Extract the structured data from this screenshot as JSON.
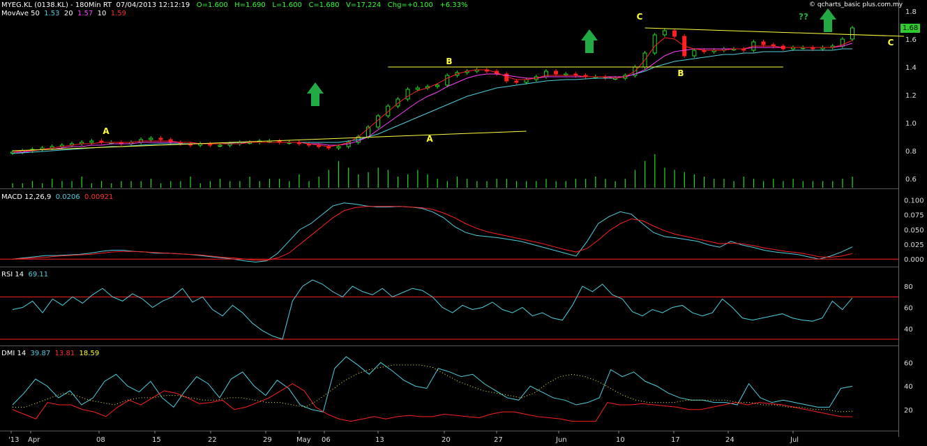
{
  "header": {
    "symbol": "MYEG.KL (0138.KL) - 180Min RT",
    "datetime": "07/04/2013  12:12:19",
    "open": "O=1.600",
    "high": "H=1.690",
    "low": "L=1.600",
    "close": "C=1.680",
    "volume": "V=17,224",
    "change": "Chg=+0.100",
    "change_pct": "+6.33%",
    "watermark": "© qcharts_basic plus.com.my",
    "price_badge": "1.68"
  },
  "movave": {
    "label": "MovAve 50",
    "v50": "1.53",
    "p20": "20",
    "v20": "1.57",
    "p10": "10",
    "v10": "1.59"
  },
  "macd": {
    "label": "MACD 12,26,9",
    "v1": "0.0206",
    "v2": "0.00921"
  },
  "rsi": {
    "label": "RSI 14",
    "v": "69.11"
  },
  "dmi": {
    "label": "DMI 14",
    "v1": "39.87",
    "v2": "13.81",
    "v3": "18.59"
  },
  "annotations": {
    "a": "A",
    "b": "B",
    "c": "C",
    "q": "??"
  },
  "colors": {
    "up": "#22dd22",
    "down": "#ff2020",
    "ma50": "#4fd0e0",
    "ma20": "#ff40ff",
    "ma10": "#ff2020",
    "trend": "#ffff40",
    "arrow": "#22aa44"
  },
  "chart_data": [
    {
      "type": "candlestick",
      "title": "MYEG.KL (0138.KL) - 180Min RT",
      "x_labels": [
        "'13",
        "Apr",
        "08",
        "15",
        "22",
        "29",
        "May",
        "06",
        "13",
        "20",
        "27",
        "Jun",
        "10",
        "17",
        "24",
        "Jul"
      ],
      "y_ticks": [
        0.6,
        0.8,
        1.0,
        1.2,
        1.4,
        1.6,
        1.8
      ],
      "ylim": [
        0.55,
        1.82
      ],
      "close": [
        0.79,
        0.8,
        0.81,
        0.82,
        0.83,
        0.84,
        0.85,
        0.86,
        0.87,
        0.86,
        0.86,
        0.85,
        0.86,
        0.88,
        0.89,
        0.88,
        0.86,
        0.85,
        0.84,
        0.85,
        0.84,
        0.84,
        0.85,
        0.86,
        0.86,
        0.87,
        0.87,
        0.86,
        0.86,
        0.85,
        0.84,
        0.83,
        0.82,
        0.83,
        0.86,
        0.9,
        0.97,
        1.05,
        1.12,
        1.17,
        1.24,
        1.25,
        1.26,
        1.27,
        1.34,
        1.36,
        1.37,
        1.38,
        1.37,
        1.35,
        1.3,
        1.29,
        1.31,
        1.33,
        1.37,
        1.35,
        1.35,
        1.34,
        1.33,
        1.33,
        1.32,
        1.32,
        1.34,
        1.4,
        1.5,
        1.63,
        1.66,
        1.62,
        1.48,
        1.52,
        1.51,
        1.52,
        1.53,
        1.53,
        1.52,
        1.58,
        1.56,
        1.55,
        1.53,
        1.54,
        1.54,
        1.53,
        1.54,
        1.55,
        1.6,
        1.68
      ],
      "volume": [
        2,
        2,
        3,
        2,
        4,
        3,
        3,
        5,
        2,
        3,
        2,
        3,
        3,
        3,
        4,
        2,
        3,
        3,
        5,
        2,
        3,
        4,
        3,
        3,
        5,
        3,
        4,
        4,
        3,
        6,
        3,
        5,
        8,
        12,
        9,
        6,
        7,
        9,
        8,
        5,
        6,
        8,
        6,
        4,
        3,
        5,
        4,
        3,
        3,
        4,
        4,
        3,
        3,
        3,
        4,
        3,
        3,
        4,
        4,
        5,
        4,
        3,
        4,
        8,
        12,
        15,
        9,
        8,
        7,
        6,
        5,
        4,
        4,
        3,
        5,
        4,
        3,
        4,
        3,
        4,
        3,
        3,
        3,
        3,
        4,
        5
      ],
      "ma50": [
        0.78,
        0.785,
        0.79,
        0.795,
        0.8,
        0.805,
        0.81,
        0.815,
        0.82,
        0.825,
        0.83,
        0.83,
        0.835,
        0.84,
        0.845,
        0.85,
        0.85,
        0.85,
        0.85,
        0.85,
        0.85,
        0.85,
        0.855,
        0.86,
        0.86,
        0.86,
        0.86,
        0.86,
        0.86,
        0.86,
        0.86,
        0.86,
        0.86,
        0.86,
        0.87,
        0.88,
        0.9,
        0.92,
        0.95,
        0.98,
        1.01,
        1.04,
        1.07,
        1.1,
        1.13,
        1.16,
        1.19,
        1.21,
        1.23,
        1.25,
        1.26,
        1.27,
        1.28,
        1.29,
        1.3,
        1.305,
        1.31,
        1.31,
        1.315,
        1.32,
        1.32,
        1.32,
        1.33,
        1.35,
        1.37,
        1.4,
        1.42,
        1.44,
        1.45,
        1.46,
        1.47,
        1.48,
        1.49,
        1.49,
        1.5,
        1.5,
        1.51,
        1.51,
        1.51,
        1.52,
        1.52,
        1.52,
        1.52,
        1.52,
        1.53,
        1.53
      ],
      "ma20": [
        0.79,
        0.79,
        0.8,
        0.81,
        0.81,
        0.82,
        0.83,
        0.83,
        0.84,
        0.84,
        0.85,
        0.85,
        0.85,
        0.86,
        0.86,
        0.86,
        0.86,
        0.86,
        0.86,
        0.85,
        0.85,
        0.85,
        0.85,
        0.85,
        0.86,
        0.86,
        0.86,
        0.86,
        0.86,
        0.86,
        0.85,
        0.85,
        0.84,
        0.84,
        0.85,
        0.87,
        0.9,
        0.95,
        1.0,
        1.05,
        1.1,
        1.15,
        1.19,
        1.22,
        1.26,
        1.29,
        1.32,
        1.34,
        1.35,
        1.35,
        1.34,
        1.33,
        1.32,
        1.32,
        1.33,
        1.33,
        1.33,
        1.33,
        1.33,
        1.33,
        1.33,
        1.33,
        1.33,
        1.35,
        1.38,
        1.43,
        1.48,
        1.51,
        1.52,
        1.53,
        1.53,
        1.53,
        1.53,
        1.53,
        1.53,
        1.54,
        1.54,
        1.54,
        1.54,
        1.54,
        1.54,
        1.54,
        1.54,
        1.54,
        1.55,
        1.57
      ],
      "ma10": [
        0.79,
        0.8,
        0.8,
        0.81,
        0.82,
        0.83,
        0.84,
        0.85,
        0.85,
        0.86,
        0.86,
        0.86,
        0.86,
        0.87,
        0.87,
        0.87,
        0.87,
        0.86,
        0.86,
        0.85,
        0.85,
        0.85,
        0.85,
        0.85,
        0.86,
        0.86,
        0.86,
        0.86,
        0.86,
        0.86,
        0.85,
        0.84,
        0.83,
        0.84,
        0.86,
        0.9,
        0.96,
        1.02,
        1.08,
        1.14,
        1.19,
        1.23,
        1.25,
        1.28,
        1.32,
        1.35,
        1.37,
        1.38,
        1.38,
        1.36,
        1.33,
        1.31,
        1.31,
        1.32,
        1.34,
        1.34,
        1.34,
        1.34,
        1.33,
        1.33,
        1.33,
        1.32,
        1.33,
        1.37,
        1.45,
        1.55,
        1.61,
        1.6,
        1.55,
        1.53,
        1.52,
        1.52,
        1.52,
        1.53,
        1.53,
        1.55,
        1.55,
        1.55,
        1.54,
        1.54,
        1.54,
        1.54,
        1.54,
        1.54,
        1.56,
        1.59
      ],
      "trendlines": [
        {
          "label": "A",
          "from": [
            0,
            0.8
          ],
          "to": [
            52,
            0.94
          ]
        },
        {
          "label": "B",
          "from": [
            38,
            1.4
          ],
          "to": [
            78,
            1.4
          ]
        },
        {
          "label": "C",
          "from": [
            64,
            1.68
          ],
          "to": [
            86,
            1.62
          ]
        }
      ]
    },
    {
      "type": "line",
      "title": "MACD 12,26,9",
      "y_ticks": [
        0.0,
        0.025,
        0.05,
        0.075,
        0.1
      ],
      "ylim": [
        -0.008,
        0.11
      ],
      "series": [
        {
          "name": "MACD",
          "color": "#4fd0e0",
          "values": [
            0,
            0.002,
            0.004,
            0.006,
            0.006,
            0.007,
            0.008,
            0.01,
            0.013,
            0.015,
            0.015,
            0.013,
            0.012,
            0.01,
            0.01,
            0.009,
            0.008,
            0.006,
            0.004,
            0.002,
            0.0,
            -0.003,
            -0.005,
            -0.003,
            0.01,
            0.03,
            0.05,
            0.06,
            0.075,
            0.09,
            0.095,
            0.093,
            0.09,
            0.088,
            0.088,
            0.089,
            0.088,
            0.086,
            0.08,
            0.07,
            0.055,
            0.045,
            0.04,
            0.038,
            0.036,
            0.033,
            0.03,
            0.025,
            0.02,
            0.015,
            0.01,
            0.005,
            0.03,
            0.06,
            0.072,
            0.08,
            0.076,
            0.06,
            0.045,
            0.038,
            0.036,
            0.033,
            0.03,
            0.024,
            0.02,
            0.03,
            0.024,
            0.02,
            0.015,
            0.012,
            0.01,
            0.008,
            0.004,
            0.0,
            0.005,
            0.012,
            0.0206
          ]
        },
        {
          "name": "Signal",
          "color": "#ff2020",
          "values": [
            0,
            0.001,
            0.002,
            0.003,
            0.005,
            0.006,
            0.007,
            0.008,
            0.01,
            0.012,
            0.013,
            0.013,
            0.012,
            0.011,
            0.01,
            0.009,
            0.008,
            0.007,
            0.005,
            0.003,
            0.002,
            0.0,
            -0.002,
            -0.002,
            0.002,
            0.01,
            0.025,
            0.04,
            0.055,
            0.07,
            0.082,
            0.087,
            0.089,
            0.089,
            0.089,
            0.089,
            0.088,
            0.087,
            0.084,
            0.078,
            0.07,
            0.06,
            0.052,
            0.046,
            0.042,
            0.038,
            0.034,
            0.03,
            0.026,
            0.021,
            0.016,
            0.012,
            0.018,
            0.032,
            0.048,
            0.06,
            0.068,
            0.065,
            0.056,
            0.048,
            0.042,
            0.038,
            0.034,
            0.03,
            0.026,
            0.027,
            0.026,
            0.023,
            0.019,
            0.016,
            0.013,
            0.011,
            0.008,
            0.004,
            0.003,
            0.005,
            0.00921
          ]
        }
      ]
    },
    {
      "type": "line",
      "title": "RSI 14",
      "y_ticks": [
        40,
        60,
        80
      ],
      "ylim": [
        26,
        92
      ],
      "reference_lines": [
        30,
        70
      ],
      "series": [
        {
          "name": "RSI",
          "color": "#4fd0e0",
          "values": [
            58,
            60,
            66,
            55,
            68,
            62,
            70,
            64,
            72,
            78,
            70,
            66,
            73,
            68,
            60,
            66,
            70,
            78,
            65,
            70,
            58,
            52,
            62,
            55,
            45,
            38,
            33,
            30,
            66,
            80,
            86,
            82,
            75,
            70,
            80,
            75,
            72,
            78,
            70,
            74,
            78,
            76,
            70,
            60,
            55,
            62,
            58,
            60,
            65,
            58,
            55,
            60,
            52,
            55,
            50,
            48,
            62,
            80,
            75,
            82,
            72,
            68,
            56,
            52,
            58,
            55,
            60,
            62,
            55,
            52,
            55,
            68,
            60,
            50,
            48,
            50,
            52,
            54,
            50,
            48,
            47,
            50,
            66,
            58,
            69
          ]
        }
      ]
    },
    {
      "type": "line",
      "title": "DMI 14",
      "y_ticks": [
        20,
        40,
        60
      ],
      "ylim": [
        5,
        68
      ],
      "series": [
        {
          "name": "+DI",
          "color": "#4fd0e0",
          "values": [
            24,
            34,
            46,
            40,
            30,
            36,
            24,
            30,
            44,
            50,
            40,
            35,
            44,
            30,
            22,
            36,
            48,
            42,
            30,
            46,
            52,
            40,
            32,
            45,
            38,
            24,
            20,
            18,
            55,
            65,
            58,
            50,
            60,
            53,
            45,
            40,
            38,
            55,
            52,
            48,
            50,
            42,
            36,
            30,
            28,
            40,
            35,
            30,
            28,
            24,
            26,
            30,
            54,
            48,
            52,
            44,
            40,
            34,
            30,
            28,
            28,
            26,
            26,
            24,
            42,
            30,
            26,
            28,
            26,
            24,
            22,
            22,
            38,
            39.87
          ]
        },
        {
          "name": "-DI",
          "color": "#ff2020",
          "values": [
            20,
            16,
            12,
            26,
            24,
            24,
            20,
            18,
            14,
            22,
            28,
            24,
            30,
            36,
            34,
            30,
            25,
            26,
            28,
            20,
            22,
            26,
            30,
            36,
            42,
            36,
            22,
            16,
            12,
            10,
            12,
            14,
            12,
            14,
            15,
            14,
            14,
            16,
            15,
            14,
            13,
            16,
            18,
            18,
            16,
            14,
            13,
            12,
            10,
            10,
            10,
            26,
            24,
            24,
            25,
            24,
            23,
            22,
            20,
            20,
            22,
            24,
            26,
            24,
            26,
            25,
            24,
            22,
            20,
            18,
            16,
            14,
            13.81
          ]
        },
        {
          "name": "ADX",
          "color": "#ffff40",
          "values": [
            22,
            22,
            26,
            30,
            34,
            32,
            28,
            26,
            24,
            28,
            30,
            30,
            32,
            32,
            30,
            28,
            28,
            30,
            30,
            28,
            26,
            26,
            24,
            22,
            28,
            36,
            44,
            50,
            54,
            56,
            58,
            58,
            58,
            56,
            50,
            44,
            40,
            36,
            34,
            32,
            30,
            34,
            42,
            48,
            50,
            48,
            44,
            38,
            32,
            28,
            26,
            26,
            26,
            28,
            28,
            28,
            28,
            26,
            26,
            24,
            24,
            22,
            22,
            20,
            20,
            18,
            18.59
          ]
        }
      ]
    }
  ]
}
